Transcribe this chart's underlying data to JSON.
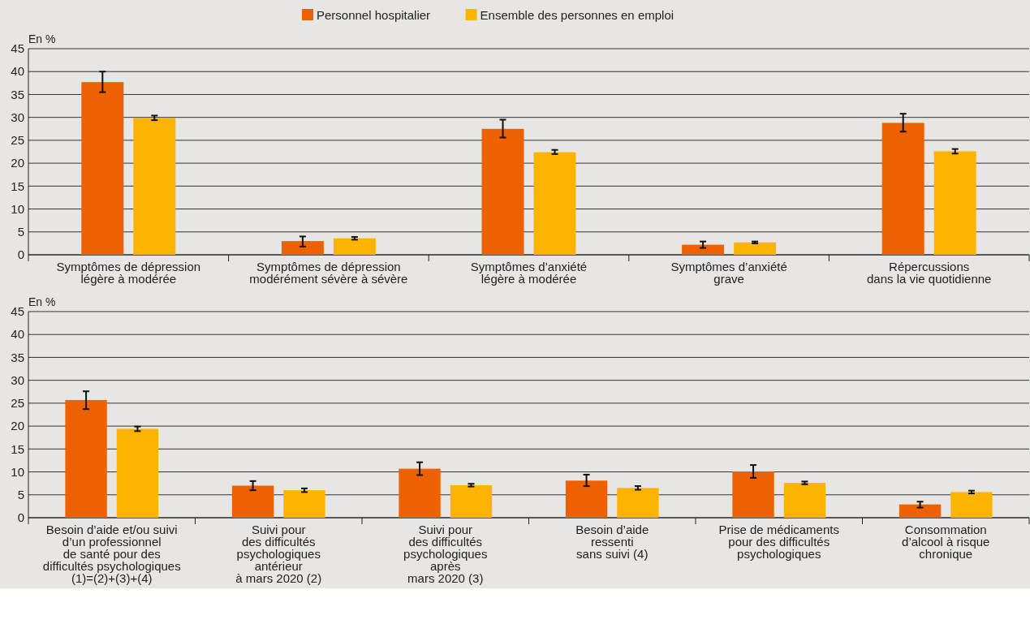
{
  "chart_data": [
    {
      "type": "bar",
      "ylabel": "En %",
      "legend": "top",
      "grid": "y",
      "ylim": [
        0,
        45
      ],
      "yticks": [
        0,
        5,
        10,
        15,
        20,
        25,
        30,
        35,
        40,
        45
      ],
      "categories": [
        "Symptômes de dépression\nlégère à modérée",
        "Symptômes de dépression\nmodérément sévère à sévère",
        "Symptômes d’anxiété\nlégère à modérée",
        "Symptômes d’anxiété\ngrave",
        "Répercussions\ndans la vie quotidienne"
      ],
      "series": [
        {
          "name": "Personnel hospitalier",
          "color": "#ee6100",
          "values": [
            37.7,
            3.0,
            27.5,
            2.2,
            28.8
          ],
          "errors": [
            [
              35.5,
              40
            ],
            [
              1.8,
              4.0
            ],
            [
              25.6,
              29.5
            ],
            [
              1.5,
              2.9
            ],
            [
              26.9,
              30.8
            ]
          ]
        },
        {
          "name": "Ensemble des personnes en emploi",
          "color": "#fcb400",
          "values": [
            29.9,
            3.6,
            22.4,
            2.7,
            22.6
          ],
          "errors": [
            [
              29.4,
              30.4
            ],
            [
              3.3,
              3.9
            ],
            [
              22.0,
              22.9
            ],
            [
              2.5,
              2.9
            ],
            [
              22.1,
              23.1
            ]
          ]
        }
      ]
    },
    {
      "type": "bar",
      "ylabel": "En %",
      "grid": "y",
      "ylim": [
        0,
        45
      ],
      "yticks": [
        0,
        5,
        10,
        15,
        20,
        25,
        30,
        35,
        40,
        45
      ],
      "categories": [
        "Besoin d’aide et/ou suivi\nd’un professionnel\nde santé pour des\ndifficultés psychologiques\n(1)=(2)+(3)+(4)",
        "Suivi pour\ndes difficultés\npsychologiques\nantérieur\nà mars 2020 (2)",
        "Suivi pour\ndes difficultés\npsychologiques\naprès\nmars 2020 (3)",
        "Besoin d’aide\nressenti\nsans suivi (4)",
        "Prise de médicaments\npour des difficultés\npsychologiques",
        "Consommation\nd’alcool à risque\nchronique"
      ],
      "series": [
        {
          "color": "#ee6100",
          "values": [
            25.7,
            7.0,
            10.7,
            8.1,
            10.1,
            2.9
          ],
          "errors": [
            [
              23.7,
              27.6
            ],
            [
              6.0,
              8.0
            ],
            [
              9.3,
              12.1
            ],
            [
              6.9,
              9.4
            ],
            [
              8.7,
              11.5
            ],
            [
              2.2,
              3.5
            ]
          ]
        },
        {
          "color": "#fcb400",
          "values": [
            19.4,
            6.0,
            7.1,
            6.5,
            7.6,
            5.6
          ],
          "errors": [
            [
              18.9,
              19.9
            ],
            [
              5.6,
              6.4
            ],
            [
              6.8,
              7.4
            ],
            [
              6.1,
              6.9
            ],
            [
              7.3,
              7.9
            ],
            [
              5.3,
              5.9
            ]
          ]
        }
      ]
    }
  ]
}
